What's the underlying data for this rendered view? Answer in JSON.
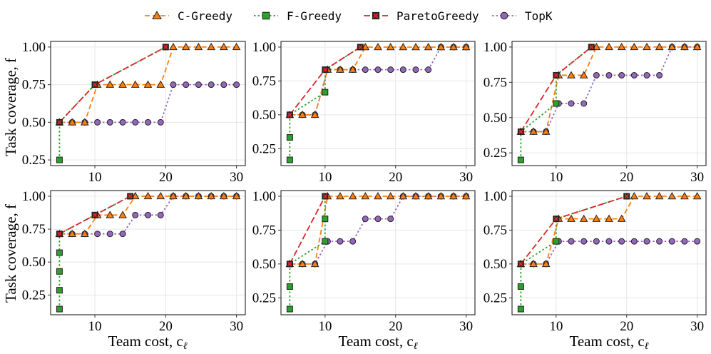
{
  "legend": {
    "placement": "top-center",
    "items": [
      {
        "name": "C-Greedy",
        "color": "#ff7f0e",
        "marker": "triangle",
        "line": "dashed"
      },
      {
        "name": "F-Greedy",
        "color": "#2ca02c",
        "marker": "square",
        "line": "dotted"
      },
      {
        "name": "ParetoGreedy",
        "color": "#d62728",
        "marker": "x",
        "line": "long-dashed"
      },
      {
        "name": "TopK",
        "color": "#9467bd",
        "marker": "circle",
        "line": "dotted"
      }
    ]
  },
  "ylabel": "Task coverage, f",
  "xlabel": "Team cost, c",
  "xlabel_subscript": "ℓ",
  "chart_data": [
    {
      "type": "line",
      "grid": true,
      "xlim": [
        3.75,
        31.25
      ],
      "ylim": [
        0.2125,
        1.0375
      ],
      "xticks": [
        10,
        20,
        30
      ],
      "yticks": [
        0.25,
        0.5,
        0.75,
        1.0
      ],
      "series": [
        {
          "name": "C-Greedy",
          "x": [
            5,
            6.79,
            8.57,
            10.36,
            12.14,
            13.93,
            15.71,
            17.5,
            19.29,
            21.07,
            22.86,
            24.64,
            26.43,
            28.21,
            30
          ],
          "y": [
            0.5,
            0.5,
            0.5,
            0.75,
            0.75,
            0.75,
            0.75,
            0.75,
            0.75,
            1,
            1,
            1,
            1,
            1,
            1
          ]
        },
        {
          "name": "F-Greedy",
          "x": [
            5,
            5,
            10,
            20
          ],
          "y": [
            0.25,
            0.5,
            0.75,
            1
          ]
        },
        {
          "name": "ParetoGreedy",
          "x": [
            5,
            10,
            20
          ],
          "y": [
            0.5,
            0.75,
            1
          ]
        },
        {
          "name": "TopK",
          "x": [
            5,
            6.79,
            8.57,
            10.36,
            12.14,
            13.93,
            15.71,
            17.5,
            19.29,
            21.07,
            22.86,
            24.64,
            26.43,
            28.21,
            30
          ],
          "y": [
            0.5,
            0.5,
            0.5,
            0.5,
            0.5,
            0.5,
            0.5,
            0.5,
            0.5,
            0.75,
            0.75,
            0.75,
            0.75,
            0.75,
            0.75
          ]
        }
      ]
    },
    {
      "type": "line",
      "grid": true,
      "xlim": [
        3.75,
        31.25
      ],
      "ylim": [
        0.125,
        1.042
      ],
      "xticks": [
        10,
        20,
        30
      ],
      "yticks": [
        0.25,
        0.5,
        0.75,
        1.0
      ],
      "series": [
        {
          "name": "C-Greedy",
          "x": [
            5,
            6.79,
            8.57,
            10.36,
            12.14,
            13.93,
            15.71,
            17.5,
            19.29,
            21.07,
            22.86,
            24.64,
            26.43,
            28.21,
            30
          ],
          "y": [
            0.5,
            0.5,
            0.5,
            0.833,
            0.833,
            0.833,
            1,
            1,
            1,
            1,
            1,
            1,
            1,
            1,
            1
          ]
        },
        {
          "name": "F-Greedy",
          "x": [
            5,
            5,
            5,
            10,
            10,
            15
          ],
          "y": [
            0.167,
            0.333,
            0.5,
            0.667,
            0.833,
            1
          ]
        },
        {
          "name": "ParetoGreedy",
          "x": [
            5,
            10,
            15
          ],
          "y": [
            0.5,
            0.833,
            1
          ]
        },
        {
          "name": "TopK",
          "x": [
            5,
            6.79,
            8.57,
            10.36,
            12.14,
            13.93,
            15.71,
            17.5,
            19.29,
            21.07,
            22.86,
            24.64,
            26.43,
            28.21,
            30
          ],
          "y": [
            0.5,
            0.5,
            0.5,
            0.833,
            0.833,
            0.833,
            0.833,
            0.833,
            0.833,
            0.833,
            0.833,
            0.833,
            1,
            1,
            1
          ]
        }
      ]
    },
    {
      "type": "line",
      "grid": true,
      "xlim": [
        3.75,
        31.25
      ],
      "ylim": [
        0.16,
        1.04
      ],
      "xticks": [
        10,
        20,
        30
      ],
      "yticks": [
        0.25,
        0.5,
        0.75,
        1.0
      ],
      "series": [
        {
          "name": "C-Greedy",
          "x": [
            5,
            6.79,
            8.57,
            10.36,
            12.14,
            13.93,
            15.71,
            17.5,
            19.29,
            21.07,
            22.86,
            24.64,
            26.43,
            28.21,
            30
          ],
          "y": [
            0.4,
            0.4,
            0.4,
            0.8,
            0.8,
            0.8,
            1,
            1,
            1,
            1,
            1,
            1,
            1,
            1,
            1
          ]
        },
        {
          "name": "F-Greedy",
          "x": [
            5,
            5,
            10,
            10,
            15
          ],
          "y": [
            0.2,
            0.4,
            0.6,
            0.8,
            1
          ]
        },
        {
          "name": "ParetoGreedy",
          "x": [
            5,
            10,
            15
          ],
          "y": [
            0.4,
            0.8,
            1
          ]
        },
        {
          "name": "TopK",
          "x": [
            5,
            6.79,
            8.57,
            10.36,
            12.14,
            13.93,
            15.71,
            17.5,
            19.29,
            21.07,
            22.86,
            24.64,
            26.43,
            28.21,
            30
          ],
          "y": [
            0.4,
            0.4,
            0.4,
            0.6,
            0.6,
            0.6,
            0.8,
            0.8,
            0.8,
            0.8,
            0.8,
            0.8,
            1,
            1,
            1
          ]
        }
      ]
    },
    {
      "type": "line",
      "grid": true,
      "xlim": [
        3.75,
        31.25
      ],
      "ylim": [
        0.1,
        1.043
      ],
      "xticks": [
        10,
        20,
        30
      ],
      "yticks": [
        0.25,
        0.5,
        0.75,
        1.0
      ],
      "series": [
        {
          "name": "C-Greedy",
          "x": [
            5,
            6.79,
            8.57,
            10.36,
            12.14,
            13.93,
            15.71,
            17.5,
            19.29,
            21.07,
            22.86,
            24.64,
            26.43,
            28.21,
            30
          ],
          "y": [
            0.714,
            0.714,
            0.714,
            0.857,
            0.857,
            0.857,
            1,
            1,
            1,
            1,
            1,
            1,
            1,
            1,
            1
          ]
        },
        {
          "name": "F-Greedy",
          "x": [
            5,
            5,
            5,
            5,
            5,
            10,
            15
          ],
          "y": [
            0.143,
            0.286,
            0.429,
            0.571,
            0.714,
            0.857,
            1
          ]
        },
        {
          "name": "ParetoGreedy",
          "x": [
            5,
            10,
            15
          ],
          "y": [
            0.714,
            0.857,
            1
          ]
        },
        {
          "name": "TopK",
          "x": [
            5,
            6.79,
            8.57,
            10.36,
            12.14,
            13.93,
            15.71,
            17.5,
            19.29,
            21.07,
            22.86,
            24.64,
            26.43,
            28.21,
            30
          ],
          "y": [
            0.714,
            0.714,
            0.714,
            0.714,
            0.714,
            0.714,
            0.857,
            0.857,
            0.857,
            1,
            1,
            1,
            1,
            1,
            1
          ]
        }
      ]
    },
    {
      "type": "line",
      "grid": true,
      "xlim": [
        3.75,
        31.25
      ],
      "ylim": [
        0.125,
        1.042
      ],
      "xticks": [
        10,
        20,
        30
      ],
      "yticks": [
        0.25,
        0.5,
        0.75,
        1.0
      ],
      "series": [
        {
          "name": "C-Greedy",
          "x": [
            5,
            6.79,
            8.57,
            10.36,
            12.14,
            13.93,
            15.71,
            17.5,
            19.29,
            21.07,
            22.86,
            24.64,
            26.43,
            28.21,
            30
          ],
          "y": [
            0.5,
            0.5,
            0.5,
            1,
            1,
            1,
            1,
            1,
            1,
            1,
            1,
            1,
            1,
            1,
            1
          ]
        },
        {
          "name": "F-Greedy",
          "x": [
            5,
            5,
            5,
            10,
            10,
            10
          ],
          "y": [
            0.167,
            0.333,
            0.5,
            0.667,
            0.833,
            1
          ]
        },
        {
          "name": "ParetoGreedy",
          "x": [
            5,
            10
          ],
          "y": [
            0.5,
            1
          ]
        },
        {
          "name": "TopK",
          "x": [
            5,
            6.79,
            8.57,
            10.36,
            12.14,
            13.93,
            15.71,
            17.5,
            19.29,
            21.07,
            22.86,
            24.64,
            26.43,
            28.21,
            30
          ],
          "y": [
            0.5,
            0.5,
            0.5,
            0.667,
            0.667,
            0.667,
            0.833,
            0.833,
            0.833,
            1,
            1,
            1,
            1,
            1,
            1
          ]
        }
      ]
    },
    {
      "type": "line",
      "grid": true,
      "xlim": [
        3.75,
        31.25
      ],
      "ylim": [
        0.125,
        1.042
      ],
      "xticks": [
        10,
        20,
        30
      ],
      "yticks": [
        0.25,
        0.5,
        0.75,
        1.0
      ],
      "series": [
        {
          "name": "C-Greedy",
          "x": [
            5,
            6.79,
            8.57,
            10.36,
            12.14,
            13.93,
            15.71,
            17.5,
            19.29,
            21.07,
            22.86,
            24.64,
            26.43,
            28.21,
            30
          ],
          "y": [
            0.5,
            0.5,
            0.5,
            0.833,
            0.833,
            0.833,
            0.833,
            0.833,
            0.833,
            1,
            1,
            1,
            1,
            1,
            1
          ]
        },
        {
          "name": "F-Greedy",
          "x": [
            5,
            5,
            5,
            10,
            10,
            20
          ],
          "y": [
            0.167,
            0.333,
            0.5,
            0.667,
            0.833,
            1
          ]
        },
        {
          "name": "ParetoGreedy",
          "x": [
            5,
            10,
            20
          ],
          "y": [
            0.5,
            0.833,
            1
          ]
        },
        {
          "name": "TopK",
          "x": [
            5,
            6.79,
            8.57,
            10.36,
            12.14,
            13.93,
            15.71,
            17.5,
            19.29,
            21.07,
            22.86,
            24.64,
            26.43,
            28.21,
            30
          ],
          "y": [
            0.5,
            0.5,
            0.5,
            0.667,
            0.667,
            0.667,
            0.667,
            0.667,
            0.667,
            0.667,
            0.667,
            0.667,
            0.667,
            0.667,
            0.667
          ]
        }
      ]
    }
  ]
}
